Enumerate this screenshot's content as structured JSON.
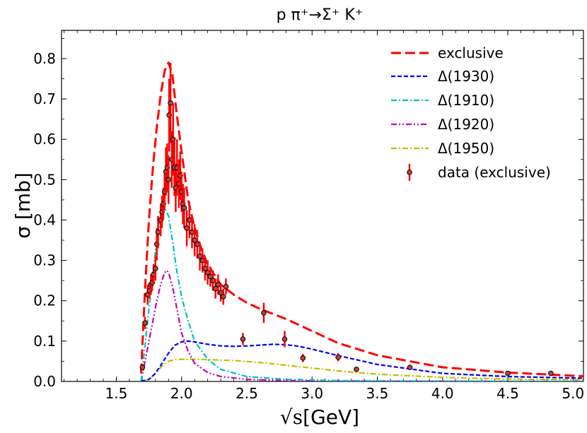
{
  "chart_data": {
    "type": "line",
    "title": "p π⁺→Σ⁺ K⁺",
    "xlabel_sqrt": "√s",
    "xlabel_unit": "[GeV]",
    "ylabel": "σ [mb]",
    "xlim": [
      1.08,
      5.08
    ],
    "ylim": [
      0.0,
      0.87
    ],
    "xticks": [
      1.5,
      2.0,
      2.5,
      3.0,
      3.5,
      4.0,
      4.5,
      5.0
    ],
    "xtick_labels": [
      "1.5",
      "2.0",
      "2.5",
      "3.0",
      "3.5",
      "4.0",
      "4.5",
      "5.0"
    ],
    "yticks": [
      0.0,
      0.1,
      0.2,
      0.3,
      0.4,
      0.5,
      0.6,
      0.7,
      0.8
    ],
    "ytick_labels": [
      "0.0",
      "0.1",
      "0.2",
      "0.3",
      "0.4",
      "0.5",
      "0.6",
      "0.7",
      "0.8"
    ],
    "legend_position": "top-right",
    "series": [
      {
        "name": "exclusive",
        "color": "#ff0000",
        "style": "dashed",
        "x": [
          1.69,
          1.72,
          1.75,
          1.78,
          1.81,
          1.84,
          1.87,
          1.9,
          1.93,
          1.96,
          2.0,
          2.05,
          2.1,
          2.15,
          2.2,
          2.3,
          2.4,
          2.5,
          2.6,
          2.8,
          3.0,
          3.2,
          3.5,
          4.0,
          4.5,
          5.08
        ],
        "y": [
          0.02,
          0.23,
          0.4,
          0.53,
          0.63,
          0.71,
          0.77,
          0.79,
          0.76,
          0.67,
          0.57,
          0.45,
          0.38,
          0.33,
          0.29,
          0.24,
          0.215,
          0.195,
          0.18,
          0.155,
          0.125,
          0.095,
          0.065,
          0.035,
          0.022,
          0.013
        ]
      },
      {
        "name": "Δ(1930)",
        "color": "#0000ff",
        "style": "dashed-short",
        "x": [
          1.69,
          1.75,
          1.8,
          1.85,
          1.9,
          1.95,
          2.0,
          2.05,
          2.1,
          2.2,
          2.3,
          2.4,
          2.5,
          2.6,
          2.7,
          2.8,
          2.9,
          3.0,
          3.2,
          3.5,
          4.0,
          4.5,
          5.08
        ],
        "y": [
          0.0,
          0.005,
          0.02,
          0.045,
          0.07,
          0.09,
          0.098,
          0.1,
          0.098,
          0.092,
          0.088,
          0.087,
          0.088,
          0.09,
          0.092,
          0.091,
          0.087,
          0.08,
          0.064,
          0.042,
          0.02,
          0.012,
          0.008
        ]
      },
      {
        "name": "Δ(1910)",
        "color": "#00bfbf",
        "style": "dash-dot",
        "x": [
          1.69,
          1.72,
          1.75,
          1.78,
          1.81,
          1.84,
          1.87,
          1.9,
          1.93,
          1.96,
          2.0,
          2.05,
          2.1,
          2.2,
          2.3,
          2.5,
          2.8,
          3.2,
          3.6,
          5.08
        ],
        "y": [
          0.0,
          0.09,
          0.18,
          0.27,
          0.35,
          0.41,
          0.43,
          0.41,
          0.35,
          0.28,
          0.21,
          0.15,
          0.1,
          0.055,
          0.03,
          0.012,
          0.005,
          0.002,
          0.001,
          0.0
        ]
      },
      {
        "name": "Δ(1920)",
        "color": "#bf00bf",
        "style": "dash-dot-dot",
        "x": [
          1.69,
          1.72,
          1.75,
          1.78,
          1.81,
          1.84,
          1.87,
          1.89,
          1.91,
          1.94,
          1.97,
          2.0,
          2.05,
          2.1,
          2.2,
          2.3,
          2.5,
          2.8,
          3.2,
          5.08
        ],
        "y": [
          0.0,
          0.05,
          0.1,
          0.15,
          0.2,
          0.24,
          0.27,
          0.275,
          0.26,
          0.22,
          0.17,
          0.12,
          0.075,
          0.045,
          0.022,
          0.012,
          0.005,
          0.002,
          0.001,
          0.0
        ]
      },
      {
        "name": "Δ(1950)",
        "color": "#bfbf00",
        "style": "dash-dot",
        "x": [
          1.69,
          1.75,
          1.8,
          1.85,
          1.9,
          1.95,
          2.0,
          2.1,
          2.2,
          2.4,
          2.6,
          2.8,
          3.0,
          3.2,
          3.5,
          4.0,
          4.5,
          5.08
        ],
        "y": [
          0.0,
          0.005,
          0.02,
          0.038,
          0.05,
          0.054,
          0.055,
          0.055,
          0.054,
          0.052,
          0.047,
          0.04,
          0.033,
          0.026,
          0.018,
          0.01,
          0.006,
          0.004
        ]
      }
    ],
    "data_points": {
      "name": "data (exclusive)",
      "color": "#ff0000",
      "marker_fill": "#c04040",
      "x": [
        1.7,
        1.72,
        1.74,
        1.755,
        1.765,
        1.775,
        1.785,
        1.8,
        1.81,
        1.82,
        1.84,
        1.85,
        1.86,
        1.87,
        1.88,
        1.89,
        1.9,
        1.905,
        1.915,
        1.925,
        1.935,
        1.945,
        1.955,
        1.965,
        1.98,
        1.99,
        2.0,
        2.01,
        2.02,
        2.04,
        2.06,
        2.08,
        2.1,
        2.12,
        2.14,
        2.16,
        2.18,
        2.2,
        2.22,
        2.24,
        2.26,
        2.28,
        2.3,
        2.32,
        2.34,
        2.47,
        2.63,
        2.79,
        2.93,
        3.2,
        3.34,
        3.75,
        4.5,
        4.83
      ],
      "y": [
        0.035,
        0.145,
        0.215,
        0.225,
        0.24,
        0.245,
        0.265,
        0.28,
        0.34,
        0.37,
        0.4,
        0.42,
        0.44,
        0.47,
        0.52,
        0.53,
        0.5,
        0.66,
        0.69,
        0.55,
        0.6,
        0.53,
        0.48,
        0.53,
        0.49,
        0.51,
        0.47,
        0.44,
        0.43,
        0.38,
        0.4,
        0.37,
        0.35,
        0.34,
        0.31,
        0.3,
        0.28,
        0.27,
        0.26,
        0.25,
        0.23,
        0.24,
        0.22,
        0.21,
        0.235,
        0.105,
        0.17,
        0.105,
        0.058,
        0.06,
        0.03,
        0.035,
        0.02,
        0.02
      ],
      "err": [
        0.008,
        0.015,
        0.025,
        0.02,
        0.025,
        0.02,
        0.025,
        0.03,
        0.04,
        0.04,
        0.04,
        0.04,
        0.04,
        0.045,
        0.06,
        0.06,
        0.06,
        0.09,
        0.1,
        0.07,
        0.09,
        0.07,
        0.06,
        0.07,
        0.06,
        0.06,
        0.05,
        0.05,
        0.05,
        0.045,
        0.045,
        0.04,
        0.04,
        0.035,
        0.035,
        0.03,
        0.03,
        0.03,
        0.025,
        0.025,
        0.025,
        0.025,
        0.022,
        0.02,
        0.02,
        0.015,
        0.025,
        0.02,
        0.01,
        0.01,
        0.005,
        0.005,
        0.003,
        0.003
      ]
    }
  }
}
